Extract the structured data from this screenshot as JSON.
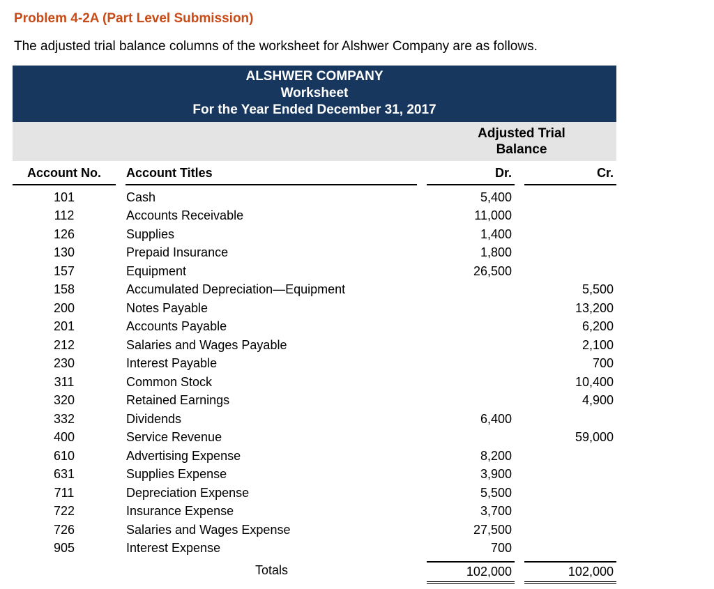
{
  "colors": {
    "title_orange": "#c84b18",
    "header_navy": "#17375e",
    "band_gray": "#e4e4e4"
  },
  "page": {
    "title": "Problem 4-2A (Part Level Submission)",
    "intro": "The adjusted trial balance columns of the worksheet for Alshwer Company are as follows."
  },
  "worksheet": {
    "company": "ALSHWER COMPANY",
    "doc_type": "Worksheet",
    "period": "For the Year Ended December 31, 2017",
    "section_header_line1": "Adjusted Trial",
    "section_header_line2": "Balance",
    "columns": {
      "account_no": "Account No.",
      "account_titles": "Account Titles",
      "dr": "Dr.",
      "cr": "Cr."
    },
    "rows": [
      {
        "no": "101",
        "title": "Cash",
        "dr": "5,400",
        "cr": ""
      },
      {
        "no": "112",
        "title": "Accounts Receivable",
        "dr": "11,000",
        "cr": ""
      },
      {
        "no": "126",
        "title": "Supplies",
        "dr": "1,400",
        "cr": ""
      },
      {
        "no": "130",
        "title": "Prepaid Insurance",
        "dr": "1,800",
        "cr": ""
      },
      {
        "no": "157",
        "title": "Equipment",
        "dr": "26,500",
        "cr": ""
      },
      {
        "no": "158",
        "title": "Accumulated Depreciation—Equipment",
        "dr": "",
        "cr": "5,500"
      },
      {
        "no": "200",
        "title": "Notes Payable",
        "dr": "",
        "cr": "13,200"
      },
      {
        "no": "201",
        "title": "Accounts Payable",
        "dr": "",
        "cr": "6,200"
      },
      {
        "no": "212",
        "title": "Salaries and Wages Payable",
        "dr": "",
        "cr": "2,100"
      },
      {
        "no": "230",
        "title": "Interest Payable",
        "dr": "",
        "cr": "700"
      },
      {
        "no": "311",
        "title": "Common Stock",
        "dr": "",
        "cr": "10,400"
      },
      {
        "no": "320",
        "title": "Retained Earnings",
        "dr": "",
        "cr": "4,900"
      },
      {
        "no": "332",
        "title": "Dividends",
        "dr": "6,400",
        "cr": ""
      },
      {
        "no": "400",
        "title": "Service Revenue",
        "dr": "",
        "cr": "59,000"
      },
      {
        "no": "610",
        "title": "Advertising Expense",
        "dr": "8,200",
        "cr": ""
      },
      {
        "no": "631",
        "title": "Supplies Expense",
        "dr": "3,900",
        "cr": ""
      },
      {
        "no": "711",
        "title": "Depreciation Expense",
        "dr": "5,500",
        "cr": ""
      },
      {
        "no": "722",
        "title": "Insurance Expense",
        "dr": "3,700",
        "cr": ""
      },
      {
        "no": "726",
        "title": "Salaries and Wages Expense",
        "dr": "27,500",
        "cr": ""
      },
      {
        "no": "905",
        "title": "Interest Expense",
        "dr": "700",
        "cr": ""
      }
    ],
    "totals": {
      "label": "Totals",
      "dr": "102,000",
      "cr": "102,000"
    }
  }
}
